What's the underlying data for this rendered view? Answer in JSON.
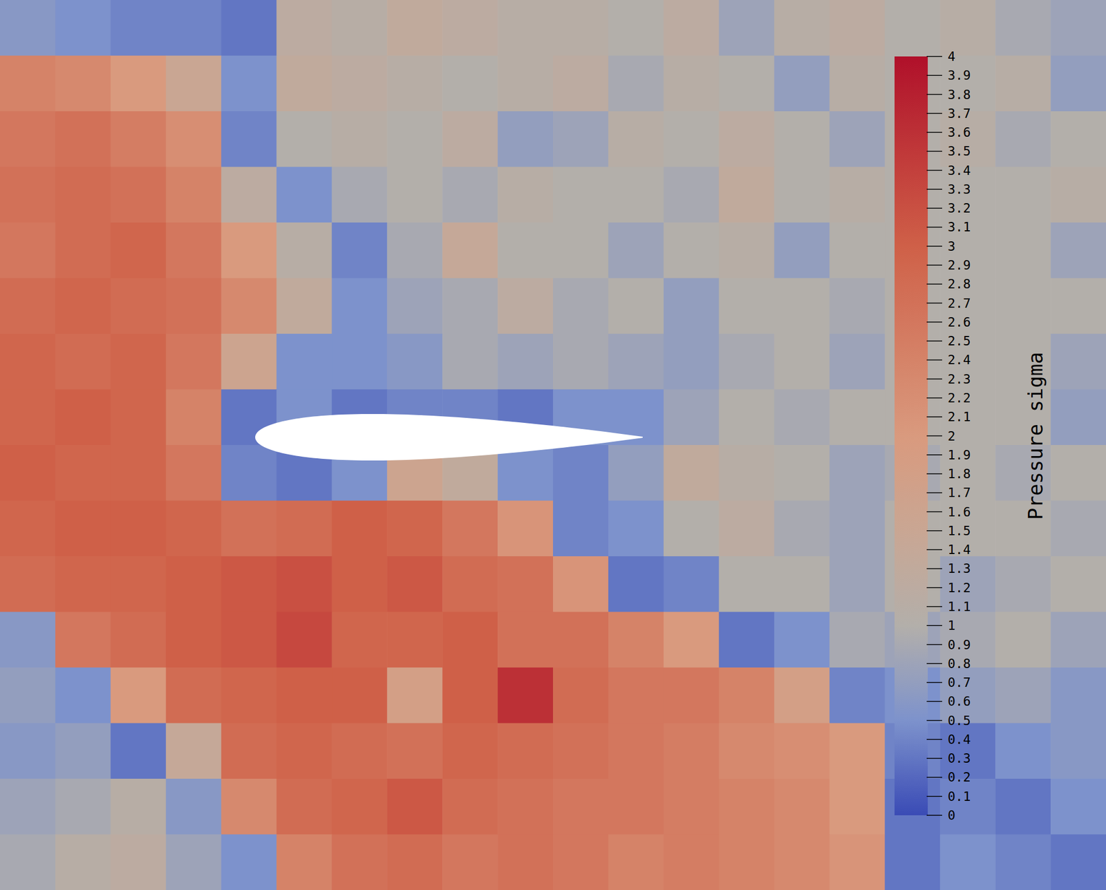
{
  "chart_data": {
    "type": "heatmap",
    "values": [
      [
        0.6,
        0.5,
        0.4,
        0.4,
        0.3,
        1.2,
        1.1,
        1.3,
        1.2,
        1.1,
        1.1,
        1.0,
        1.2,
        0.8,
        1.1,
        1.2,
        1.0,
        1.1,
        0.9,
        0.8
      ],
      [
        2.4,
        2.3,
        2.0,
        1.5,
        0.5,
        1.3,
        1.2,
        1.1,
        1.0,
        1.1,
        1.2,
        0.9,
        1.1,
        1.0,
        0.7,
        1.1,
        1.0,
        1.0,
        1.1,
        0.7
      ],
      [
        2.6,
        2.7,
        2.5,
        2.2,
        0.4,
        1.0,
        1.1,
        1.0,
        1.2,
        0.7,
        0.8,
        1.1,
        1.0,
        1.2,
        1.0,
        0.8,
        1.0,
        1.1,
        0.9,
        1.0
      ],
      [
        2.7,
        2.8,
        2.7,
        2.4,
        1.2,
        0.5,
        0.9,
        1.0,
        0.9,
        1.1,
        1.0,
        1.0,
        0.9,
        1.3,
        1.0,
        1.1,
        1.0,
        1.0,
        1.0,
        1.1
      ],
      [
        2.6,
        2.8,
        2.9,
        2.6,
        2.0,
        1.1,
        0.4,
        0.9,
        1.4,
        1.0,
        1.0,
        0.8,
        1.0,
        1.1,
        0.7,
        1.0,
        1.0,
        1.0,
        1.0,
        0.8
      ],
      [
        2.8,
        2.9,
        2.8,
        2.7,
        2.3,
        1.3,
        0.5,
        0.8,
        0.9,
        1.2,
        0.9,
        1.0,
        0.7,
        1.0,
        1.0,
        0.9,
        1.0,
        1.0,
        1.0,
        1.0
      ],
      [
        2.9,
        2.8,
        2.9,
        2.6,
        1.6,
        0.5,
        0.5,
        0.6,
        0.9,
        0.8,
        0.9,
        0.8,
        0.7,
        0.9,
        1.0,
        0.8,
        1.0,
        1.0,
        1.0,
        0.8
      ],
      [
        2.9,
        3.0,
        2.9,
        2.4,
        0.3,
        0.5,
        0.3,
        0.4,
        0.4,
        0.3,
        0.5,
        0.5,
        0.8,
        1.0,
        0.9,
        1.0,
        1.0,
        1.0,
        1.0,
        0.7
      ],
      [
        3.0,
        2.9,
        2.9,
        2.6,
        0.4,
        0.3,
        0.5,
        1.6,
        1.3,
        0.5,
        0.4,
        0.7,
        1.3,
        1.1,
        1.0,
        0.8,
        0.9,
        1.0,
        0.9,
        1.0
      ],
      [
        2.9,
        3.0,
        3.0,
        2.9,
        2.7,
        2.8,
        3.0,
        2.9,
        2.6,
        2.1,
        0.4,
        0.5,
        1.0,
        1.2,
        0.9,
        0.8,
        1.0,
        1.0,
        1.0,
        0.9
      ],
      [
        2.8,
        2.9,
        2.9,
        3.0,
        3.1,
        3.2,
        3.0,
        3.1,
        2.8,
        2.7,
        2.1,
        0.3,
        0.4,
        1.0,
        1.0,
        0.8,
        1.0,
        0.8,
        0.9,
        1.0
      ],
      [
        0.6,
        2.6,
        2.8,
        3.0,
        3.1,
        3.3,
        2.9,
        2.9,
        3.0,
        2.7,
        2.7,
        2.4,
        2.0,
        0.3,
        0.5,
        0.9,
        0.8,
        0.9,
        1.0,
        0.8
      ],
      [
        0.7,
        0.5,
        2.0,
        2.8,
        2.9,
        3.0,
        3.0,
        1.8,
        3.0,
        3.6,
        2.8,
        2.6,
        2.6,
        2.4,
        1.8,
        0.4,
        0.5,
        0.7,
        0.8,
        0.6
      ],
      [
        0.6,
        0.7,
        0.3,
        1.4,
        2.8,
        2.9,
        2.8,
        2.7,
        2.9,
        2.8,
        2.7,
        2.6,
        2.5,
        2.3,
        2.2,
        2.0,
        0.4,
        0.3,
        0.5,
        0.6
      ],
      [
        0.8,
        0.9,
        1.1,
        0.6,
        2.3,
        2.8,
        2.9,
        3.1,
        2.8,
        2.7,
        2.6,
        2.6,
        2.5,
        2.4,
        2.3,
        2.0,
        0.3,
        0.4,
        0.3,
        0.5
      ],
      [
        0.9,
        1.1,
        1.2,
        0.8,
        0.5,
        2.4,
        2.7,
        2.8,
        2.6,
        2.7,
        2.6,
        2.4,
        2.5,
        2.4,
        2.3,
        2.1,
        0.3,
        0.5,
        0.4,
        0.3
      ]
    ],
    "colorbar": {
      "title": "Pressure sigma",
      "range": [
        0,
        4
      ],
      "ticks": [
        0,
        0.1,
        0.2,
        0.3,
        0.4,
        0.5,
        0.6,
        0.7,
        0.8,
        0.9,
        1,
        1.1,
        1.2,
        1.3,
        1.4,
        1.5,
        1.6,
        1.7,
        1.8,
        1.9,
        2,
        2.1,
        2.2,
        2.3,
        2.4,
        2.5,
        2.6,
        2.7,
        2.8,
        2.9,
        3,
        3.1,
        3.2,
        3.3,
        3.4,
        3.5,
        3.6,
        3.7,
        3.8,
        3.9,
        4
      ]
    }
  }
}
